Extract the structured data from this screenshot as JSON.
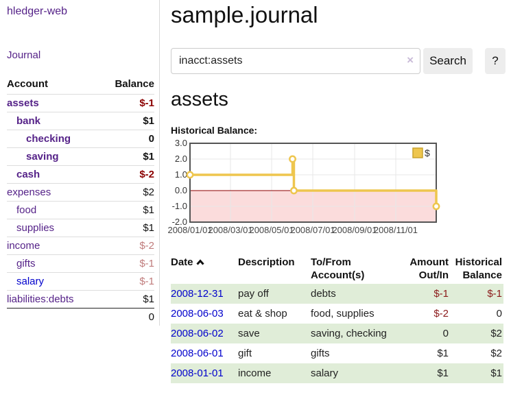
{
  "app": {
    "brand": "hledger-web",
    "nav_journal": "Journal"
  },
  "sidebar": {
    "account_header": "Account",
    "balance_header": "Balance",
    "accounts": [
      {
        "name": "assets",
        "indent": 0,
        "bold": true,
        "link_color": "purple",
        "balance": "$-1",
        "balance_style": "neg-strong"
      },
      {
        "name": "bank",
        "indent": 1,
        "bold": true,
        "link_color": "purple",
        "balance": "$1",
        "balance_style": "normal"
      },
      {
        "name": "checking",
        "indent": 2,
        "bold": true,
        "link_color": "purple",
        "balance": "0",
        "balance_style": "normal"
      },
      {
        "name": "saving",
        "indent": 2,
        "bold": true,
        "link_color": "purple",
        "balance": "$1",
        "balance_style": "normal"
      },
      {
        "name": "cash",
        "indent": 1,
        "bold": true,
        "link_color": "purple",
        "balance": "$-2",
        "balance_style": "neg-strong"
      },
      {
        "name": "expenses",
        "indent": 0,
        "bold": false,
        "link_color": "purple",
        "balance": "$2",
        "balance_style": "normal"
      },
      {
        "name": "food",
        "indent": 1,
        "bold": false,
        "link_color": "purple",
        "balance": "$1",
        "balance_style": "normal"
      },
      {
        "name": "supplies",
        "indent": 1,
        "bold": false,
        "link_color": "purple",
        "balance": "$1",
        "balance_style": "normal"
      },
      {
        "name": "income",
        "indent": 0,
        "bold": false,
        "link_color": "purple",
        "balance": "$-2",
        "balance_style": "neg-soft"
      },
      {
        "name": "gifts",
        "indent": 1,
        "bold": false,
        "link_color": "purple",
        "balance": "$-1",
        "balance_style": "neg-soft"
      },
      {
        "name": "salary",
        "indent": 1,
        "bold": false,
        "link_color": "blue",
        "balance": "$-1",
        "balance_style": "neg-soft"
      },
      {
        "name": "liabilities:debts",
        "indent": 0,
        "bold": false,
        "link_color": "purple",
        "balance": "$1",
        "balance_style": "normal"
      }
    ],
    "total": "0"
  },
  "header": {
    "title": "sample.journal"
  },
  "search": {
    "value": "inacct:assets",
    "clear_icon": "×",
    "button_label": "Search",
    "help_label": "?"
  },
  "main": {
    "heading": "assets",
    "chart_label": "Historical Balance:"
  },
  "chart_data": {
    "type": "line",
    "title": "Historical Balance:",
    "legend": [
      {
        "label": "$",
        "color": "#eec64e"
      }
    ],
    "legend_position": "top-right",
    "grid": true,
    "x_range": [
      "2008-01-01",
      "2008-12-31"
    ],
    "ylim": [
      -2,
      3
    ],
    "y_tick_step": 1,
    "x_ticks": [
      {
        "date": "2008-01-01",
        "label": "2008/01/01"
      },
      {
        "date": "2008-03-01",
        "label": "2008/03/01"
      },
      {
        "date": "2008-05-01",
        "label": "2008/05/01"
      },
      {
        "date": "2008-07-01",
        "label": "2008/07/01"
      },
      {
        "date": "2008-09-01",
        "label": "2008/09/01"
      },
      {
        "date": "2008-11-01",
        "label": "2008/11/01"
      }
    ],
    "series": [
      {
        "name": "$",
        "color": "#eec64e",
        "step": true,
        "points": [
          {
            "date": "2008-01-01",
            "value": 1
          },
          {
            "date": "2008-06-01",
            "value": 2
          },
          {
            "date": "2008-06-03",
            "value": 0
          },
          {
            "date": "2008-12-31",
            "value": -1
          }
        ]
      }
    ],
    "negative_region_color": "#fbdcdc",
    "zero_line_color": "#8b0000",
    "grid_color": "#e7e7e7",
    "border_color": "#545454"
  },
  "register": {
    "columns": [
      {
        "lines": [
          "Date"
        ],
        "align": "left",
        "sortable": true,
        "sort": "asc"
      },
      {
        "lines": [
          "Description"
        ],
        "align": "left"
      },
      {
        "lines": [
          "To/From",
          "Account(s)"
        ],
        "align": "left"
      },
      {
        "lines": [
          "Amount",
          "Out/In"
        ],
        "align": "right"
      },
      {
        "lines": [
          "Historical",
          "Balance"
        ],
        "align": "right"
      }
    ],
    "rows": [
      {
        "date": "2008-12-31",
        "description": "pay off",
        "accounts": "debts",
        "amount": "$-1",
        "balance": "$-1"
      },
      {
        "date": "2008-06-03",
        "description": "eat & shop",
        "accounts": "food, supplies",
        "amount": "$-2",
        "balance": "0"
      },
      {
        "date": "2008-06-02",
        "description": "save",
        "accounts": "saving, checking",
        "amount": "0",
        "balance": "$2"
      },
      {
        "date": "2008-06-01",
        "description": "gift",
        "accounts": "gifts",
        "amount": "$1",
        "balance": "$2"
      },
      {
        "date": "2008-01-01",
        "description": "income",
        "accounts": "salary",
        "amount": "$1",
        "balance": "$1"
      }
    ]
  }
}
